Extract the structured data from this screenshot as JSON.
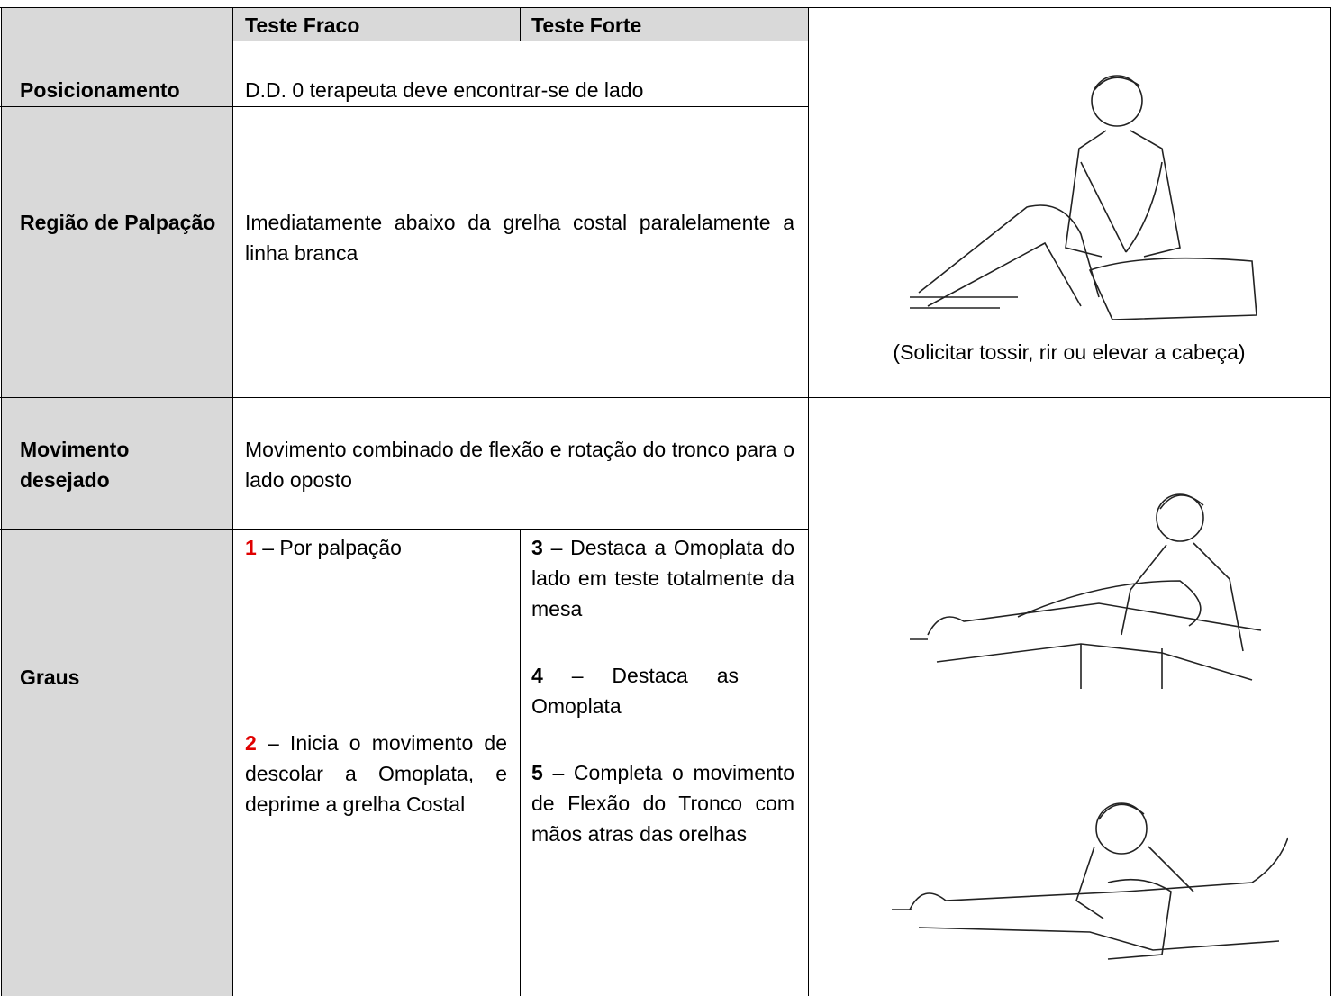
{
  "header": {
    "weak_test": "Teste Fraco",
    "strong_test": "Teste Forte"
  },
  "rows": [
    {
      "label": "Posicionamento",
      "text": "D.D. 0 terapeuta deve encontrar-se de lado"
    },
    {
      "label": "Região de Palpação",
      "text": "Imediatamente abaixo da grelha costal paralelamente a linha branca"
    },
    {
      "label": "Movimento desejado",
      "text": "Movimento combinado de flexão e rotação do tronco para o lado oposto"
    },
    {
      "label": "Graus"
    }
  ],
  "weak_grades": [
    {
      "grade": "1",
      "text": "– Por palpação"
    },
    {
      "grade": "2",
      "text": "– Inicia o movimento de descolar a Omoplata, e deprime a grelha Costal"
    }
  ],
  "strong_grades": [
    {
      "grade": "3",
      "text": "– Destaca a Omoplata do lado em teste totalmente da mesa"
    },
    {
      "grade": "4",
      "text": "– Destaca as Omoplata"
    },
    {
      "grade": "5",
      "text": "– Completa o movimento de Flexão do Tronco com mãos atras das orelhas"
    }
  ],
  "caption": "(Solicitar tossir, rir ou elevar a cabeça)"
}
